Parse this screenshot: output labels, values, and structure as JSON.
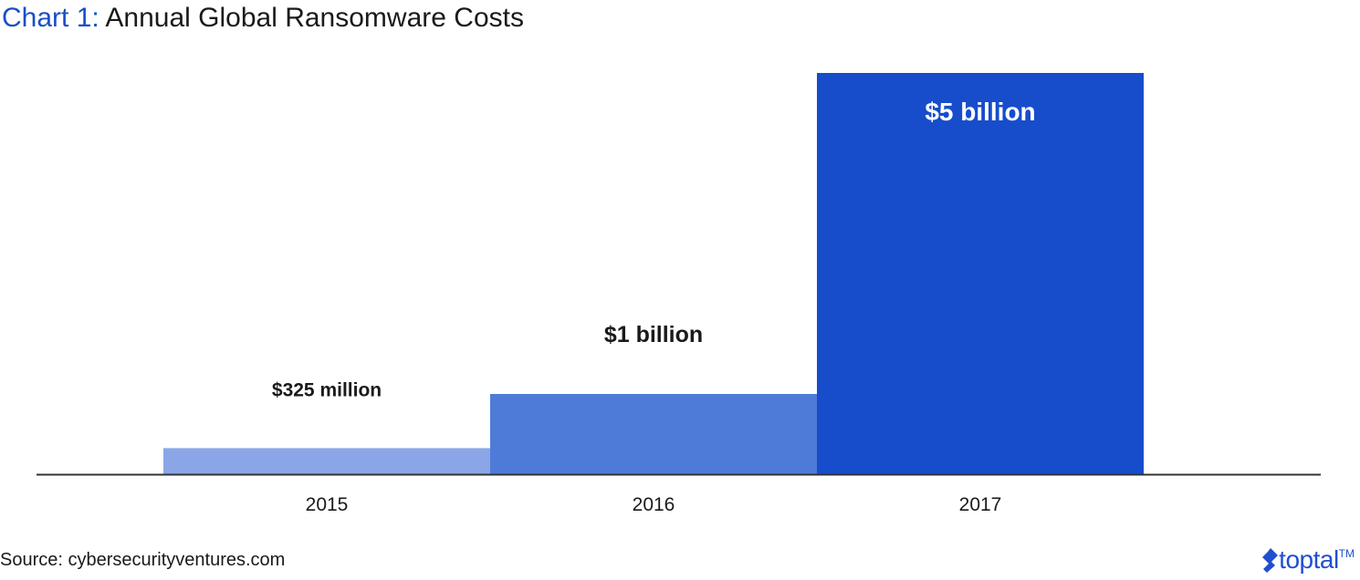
{
  "title": {
    "prefix": "Chart 1:",
    "main": "Annual Global Ransomware Costs"
  },
  "chart_data": {
    "type": "bar",
    "categories": [
      "2015",
      "2016",
      "2017"
    ],
    "values": [
      325,
      1000,
      5000
    ],
    "data_labels": [
      "$325 million",
      "$1 billion",
      "$5 billion"
    ],
    "unit": "USD millions",
    "bar_colors": [
      "#8aa6e6",
      "#4f7bd8",
      "#174dcb"
    ],
    "title": "Annual Global Ransomware Costs",
    "xlabel": "",
    "ylabel": "",
    "ylim": [
      0,
      5000
    ],
    "grid": false,
    "legend": "none"
  },
  "source": "Source: cybersecurityventures.com",
  "logo": {
    "name": "toptal-logo-icon",
    "word": "toptal",
    "tm": "TM",
    "color": "#204ecf"
  },
  "colors": {
    "title_accent": "#1a4ec8",
    "axis": "#333333",
    "text": "#1a1a1a",
    "label_inside": "#ffffff"
  }
}
